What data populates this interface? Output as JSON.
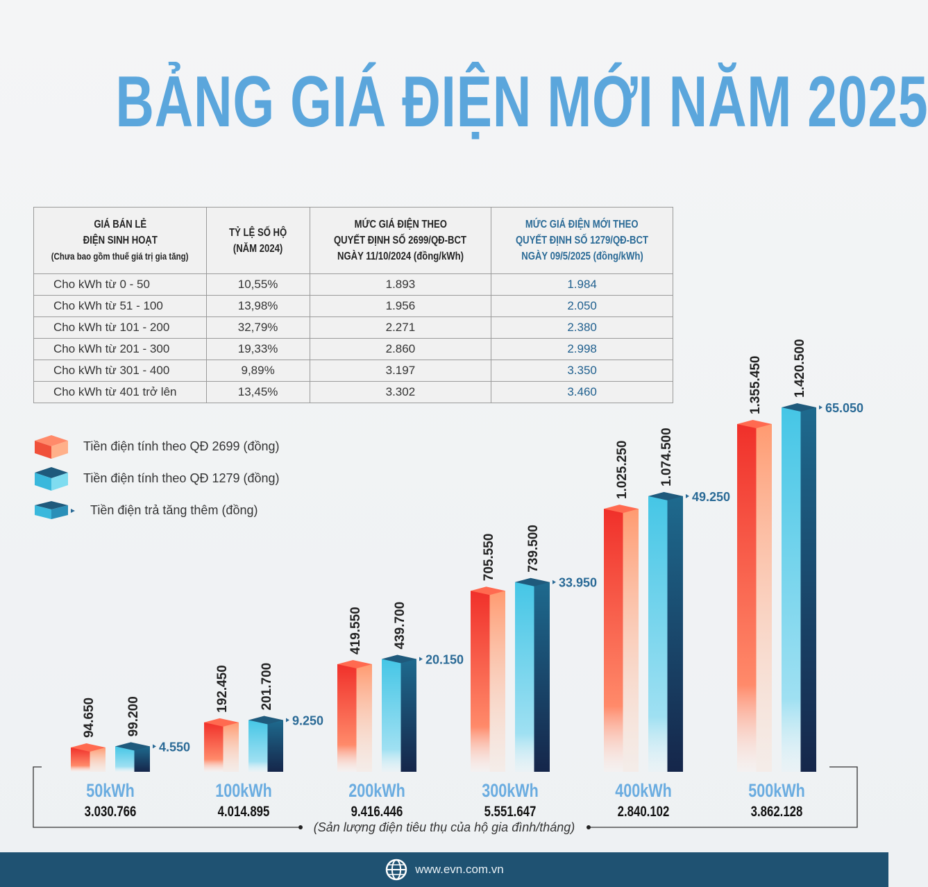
{
  "title": "BẢNG GIÁ ĐIỆN MỚI NĂM 2025",
  "table": {
    "headers": [
      {
        "lines": [
          "GIÁ BÁN LẺ",
          "ĐIỆN SINH HOẠT",
          "(Chưa bao gồm thuế giá trị gia tăng)"
        ]
      },
      {
        "lines": [
          "TỶ LỆ SỐ HỘ",
          "(NĂM 2024)"
        ]
      },
      {
        "lines": [
          "MỨC GIÁ ĐIỆN THEO",
          "QUYẾT ĐỊNH SỐ 2699/QĐ-BCT",
          "NGÀY 11/10/2024 (đồng/kWh)"
        ]
      },
      {
        "lines": [
          "MỨC GIÁ ĐIỆN MỚI THEO",
          "QUYẾT ĐỊNH SỐ 1279/QĐ-BCT",
          "NGÀY 09/5/2025 (đồng/kWh)"
        ]
      }
    ],
    "rows": [
      [
        "Cho kWh từ 0 - 50",
        "10,55%",
        "1.893",
        "1.984"
      ],
      [
        "Cho kWh từ  51 - 100",
        "13,98%",
        "1.956",
        "2.050"
      ],
      [
        "Cho kWh từ 101 - 200",
        "32,79%",
        "2.271",
        "2.380"
      ],
      [
        "Cho kWh từ 201 - 300",
        "19,33%",
        "2.860",
        "2.998"
      ],
      [
        "Cho kWh từ 301 - 400",
        "9,89%",
        "3.197",
        "3.350"
      ],
      [
        "Cho kWh từ 401 trở lên",
        "13,45%",
        "3.302",
        "3.460"
      ]
    ]
  },
  "legend": [
    {
      "label": "Tiền điện tính theo QĐ 2699 (đồng)",
      "icon": "red-cube-icon"
    },
    {
      "label": "Tiền điện tính theo QĐ 1279 (đồng)",
      "icon": "blue-cube-icon"
    },
    {
      "label": "Tiền điện trả tăng thêm (đồng)",
      "icon": "blue-arrow-cube-icon"
    }
  ],
  "colors": {
    "old": "#f0503a",
    "new": "#3ab8dc",
    "title": "#5ba6dc",
    "footer": "#1f5272"
  },
  "chart_data": {
    "type": "bar",
    "categories": [
      "50kWh",
      "100kWh",
      "200kWh",
      "300kWh",
      "400kWh",
      "500kWh"
    ],
    "households": [
      "3.030.766",
      "4.014.895",
      "9.416.446",
      "5.551.647",
      "2.840.102",
      "3.862.128"
    ],
    "series": [
      {
        "name": "Tiền điện tính theo QĐ 2699 (đồng)",
        "values": [
          94650,
          192450,
          419550,
          705550,
          1025250,
          1355450
        ],
        "labels": [
          "94.650",
          "192.450",
          "419.550",
          "705.550",
          "1.025.250",
          "1.355.450"
        ]
      },
      {
        "name": "Tiền điện tính theo QĐ 1279 (đồng)",
        "values": [
          99200,
          201700,
          439700,
          739500,
          1074500,
          1420500
        ],
        "labels": [
          "99.200",
          "201.700",
          "439.700",
          "739.500",
          "1.074.500",
          "1.420.500"
        ]
      },
      {
        "name": "Tiền điện trả tăng thêm (đồng)",
        "values": [
          4550,
          9250,
          20150,
          33950,
          49250,
          65050
        ],
        "labels": [
          "4.550",
          "9.250",
          "20.150",
          "33.950",
          "49.250",
          "65.050"
        ]
      }
    ],
    "xlabel": "(Sản lượng điện tiêu thụ của hộ gia đình/tháng)"
  },
  "footer": {
    "url": "www.evn.com.vn"
  }
}
